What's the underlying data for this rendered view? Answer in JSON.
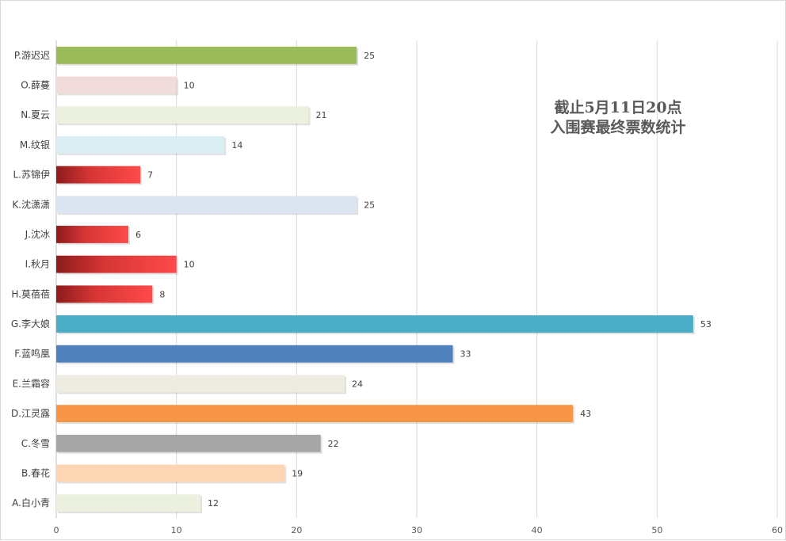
{
  "chart_data": {
    "type": "bar",
    "orientation": "horizontal",
    "title_lines": [
      "截止5月11日20点",
      "入围赛最终票数统计"
    ],
    "categories": [
      "A.白小青",
      "B.春花",
      "C.冬雪",
      "D.江灵露",
      "E.兰霜容",
      "F.蓝鸣凰",
      "G.李大娘",
      "H.莫蓓蓓",
      "I.秋月",
      "J.沈冰",
      "K.沈潇潇",
      "L.苏锦伊",
      "M.纹银",
      "N.夏云",
      "O.薛蔓",
      "P.游迟迟"
    ],
    "values": [
      12,
      19,
      22,
      43,
      24,
      33,
      53,
      8,
      10,
      6,
      25,
      7,
      14,
      21,
      10,
      25
    ],
    "bar_colors": [
      "#ebf1de",
      "#fcd5b5",
      "#a6a6a6",
      "#f79646",
      "#eeece1",
      "#4f81bd",
      "#4bacc6",
      "red-gradient",
      "red-gradient",
      "red-gradient",
      "#dce6f2",
      "red-gradient",
      "#dbeef4",
      "#ebf1de",
      "#f2dcdb",
      "#9bbb59"
    ],
    "xlim": [
      0,
      60
    ],
    "xticks": [
      0,
      10,
      20,
      30,
      40,
      50,
      60
    ],
    "grid": true,
    "xlabel": "",
    "ylabel": ""
  }
}
